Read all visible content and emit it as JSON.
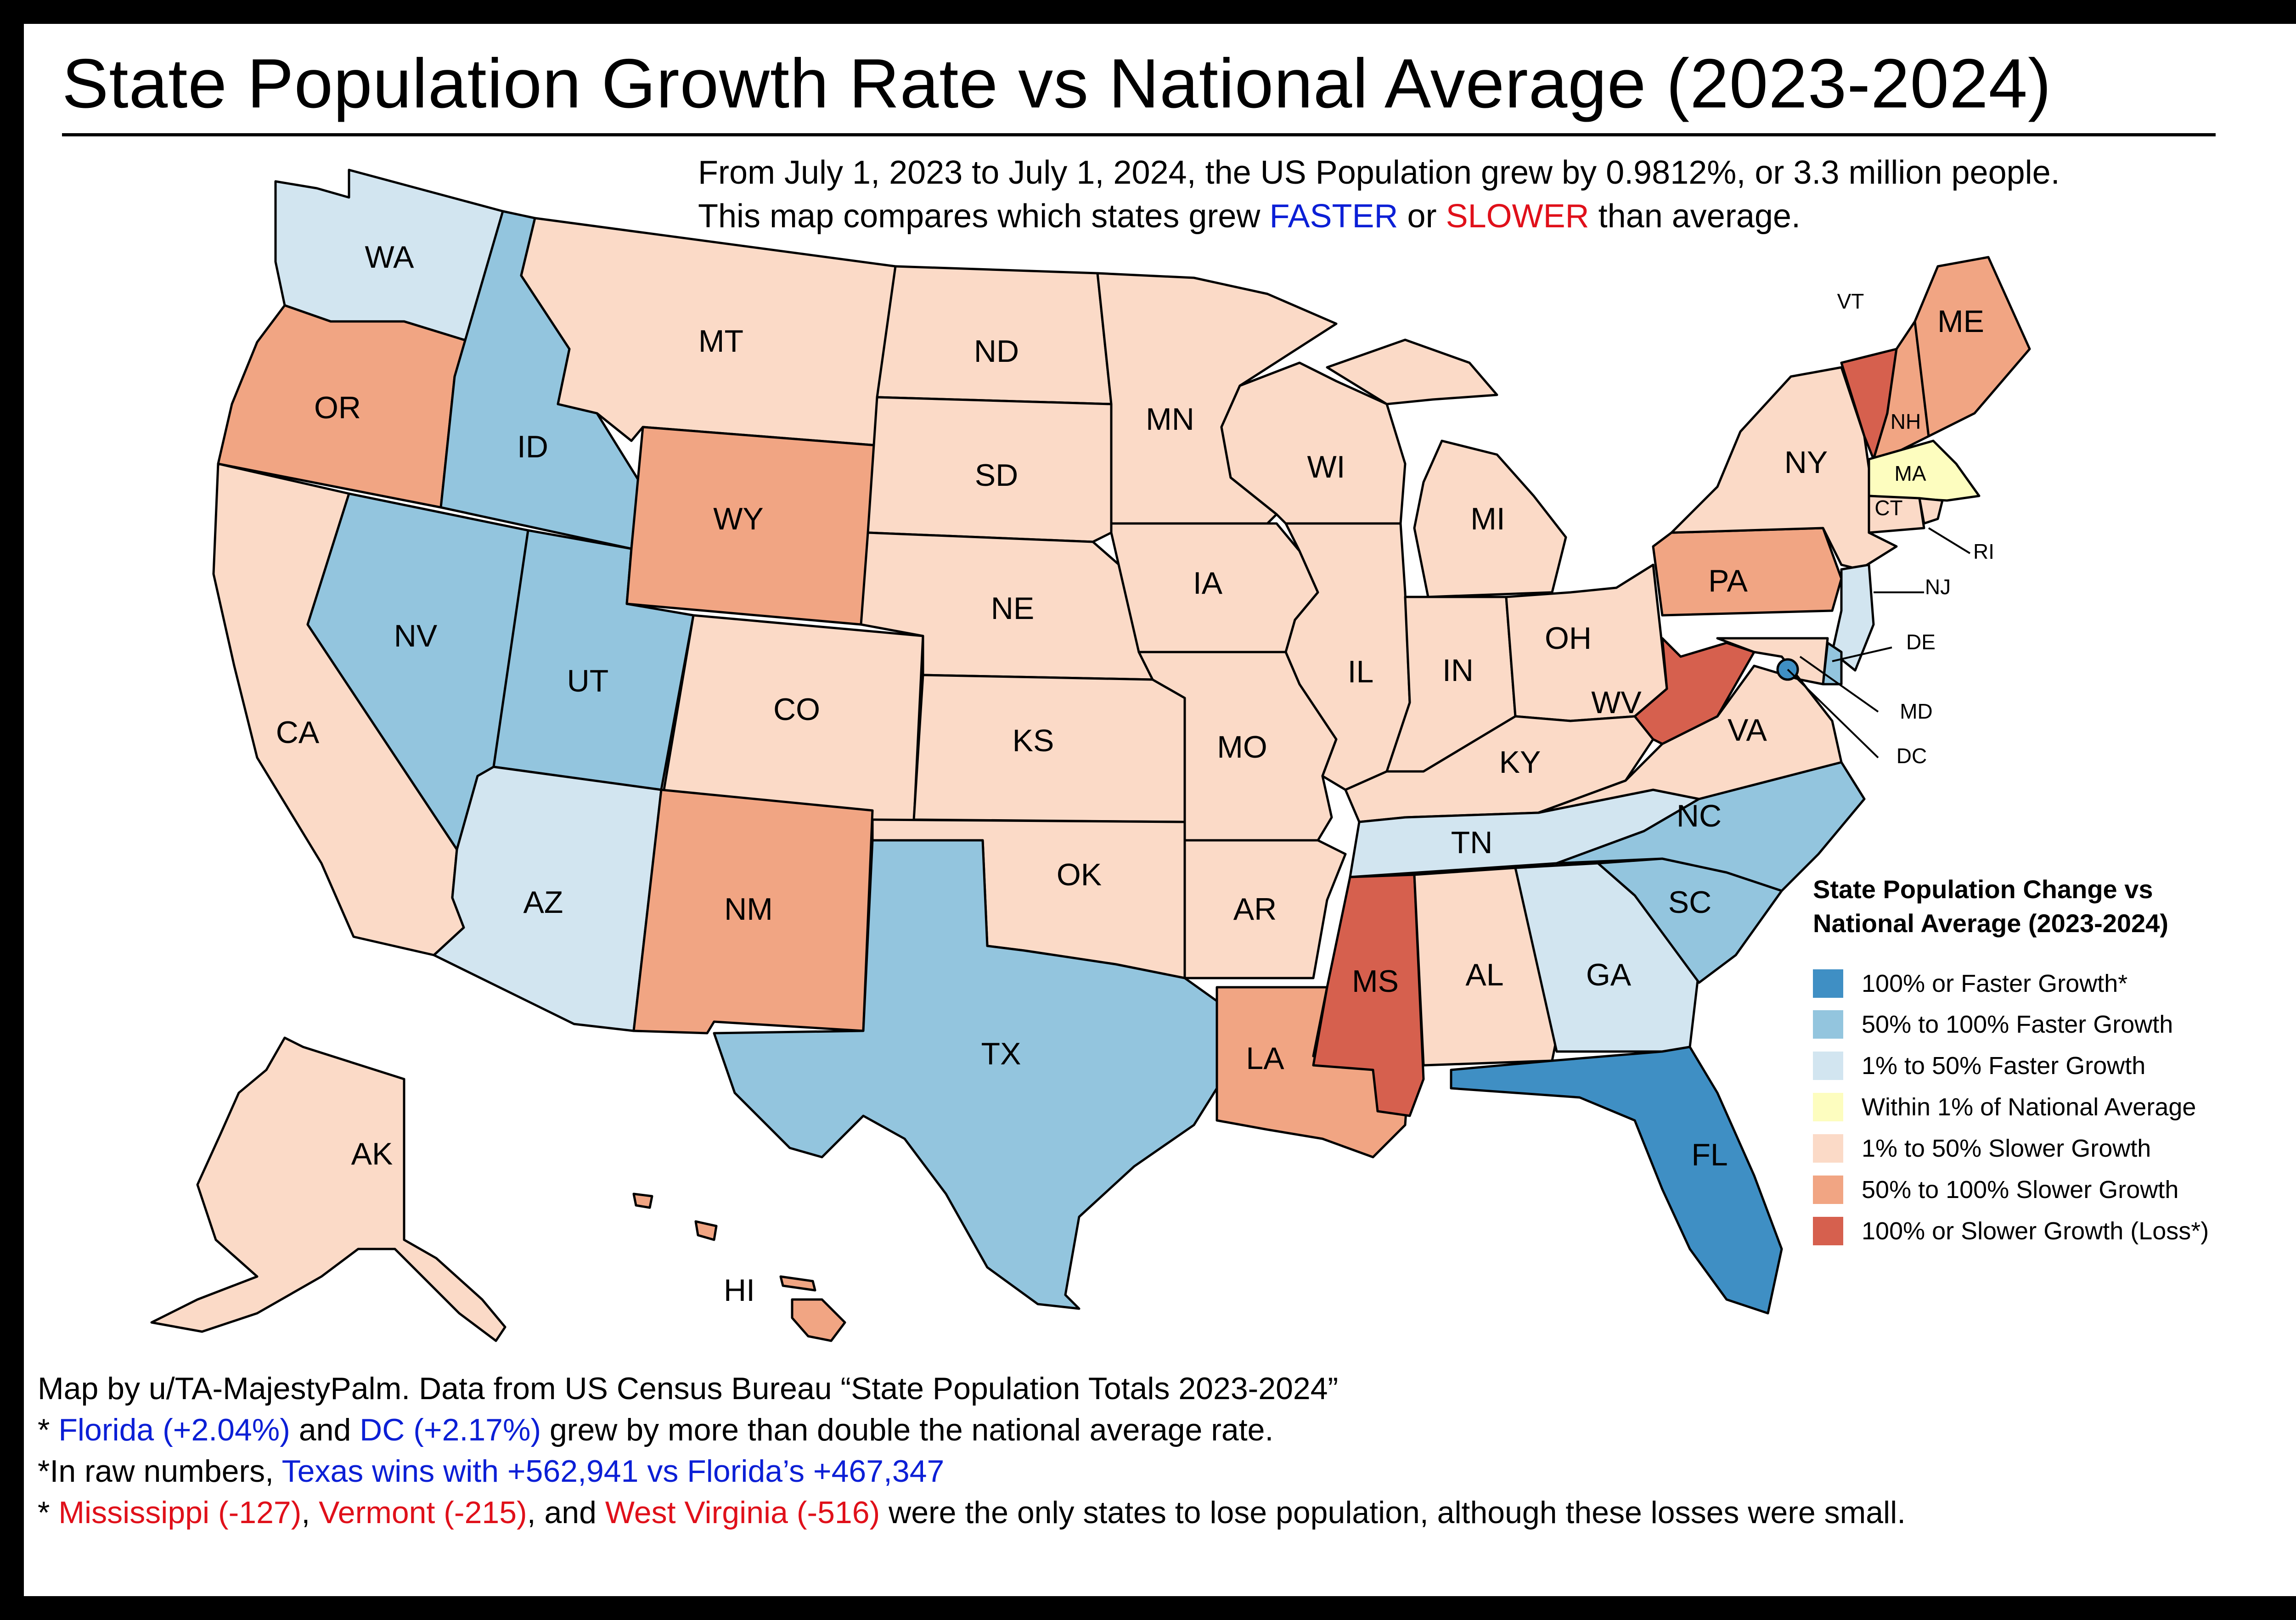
{
  "title": "State Population Growth Rate vs National Average (2023-2024)",
  "subtitle": {
    "line1": "From July 1, 2023 to July 1, 2024, the US Population grew by 0.9812%, or 3.3 million people.",
    "line2_pre": "This map compares which states grew ",
    "faster": "FASTER",
    "or": " or ",
    "slower": "SLOWER",
    "line2_post": " than average."
  },
  "legend": {
    "title_line1": "State Population Change vs",
    "title_line2": "National Average (2023-2024)",
    "items": [
      {
        "label": "100% or Faster Growth*",
        "color": "#3f8fc4"
      },
      {
        "label": "50% to 100% Faster Growth",
        "color": "#93c5de"
      },
      {
        "label": "1% to 50% Faster Growth",
        "color": "#d2e5f0"
      },
      {
        "label": "Within 1% of National Average",
        "color": "#fdfdbf"
      },
      {
        "label": "1% to 50% Slower Growth",
        "color": "#fbdac7"
      },
      {
        "label": "50% to 100% Slower Growth",
        "color": "#f1a583"
      },
      {
        "label": "100% or Slower Growth (Loss*)",
        "color": "#d6604e"
      }
    ]
  },
  "states": [
    {
      "code": "WA",
      "category": 2
    },
    {
      "code": "OR",
      "category": 5
    },
    {
      "code": "CA",
      "category": 4
    },
    {
      "code": "ID",
      "category": 1
    },
    {
      "code": "NV",
      "category": 1
    },
    {
      "code": "UT",
      "category": 1
    },
    {
      "code": "AZ",
      "category": 2
    },
    {
      "code": "MT",
      "category": 4
    },
    {
      "code": "WY",
      "category": 5
    },
    {
      "code": "CO",
      "category": 4
    },
    {
      "code": "NM",
      "category": 5
    },
    {
      "code": "ND",
      "category": 4
    },
    {
      "code": "SD",
      "category": 4
    },
    {
      "code": "NE",
      "category": 4
    },
    {
      "code": "KS",
      "category": 4
    },
    {
      "code": "OK",
      "category": 4
    },
    {
      "code": "TX",
      "category": 1
    },
    {
      "code": "MN",
      "category": 4
    },
    {
      "code": "IA",
      "category": 4
    },
    {
      "code": "MO",
      "category": 4
    },
    {
      "code": "AR",
      "category": 4
    },
    {
      "code": "LA",
      "category": 5
    },
    {
      "code": "WI",
      "category": 4
    },
    {
      "code": "IL",
      "category": 4
    },
    {
      "code": "MI",
      "category": 4
    },
    {
      "code": "IN",
      "category": 4
    },
    {
      "code": "OH",
      "category": 4
    },
    {
      "code": "KY",
      "category": 4
    },
    {
      "code": "TN",
      "category": 2
    },
    {
      "code": "MS",
      "category": 6
    },
    {
      "code": "AL",
      "category": 4
    },
    {
      "code": "GA",
      "category": 2
    },
    {
      "code": "FL",
      "category": 0
    },
    {
      "code": "SC",
      "category": 1
    },
    {
      "code": "NC",
      "category": 1
    },
    {
      "code": "VA",
      "category": 4
    },
    {
      "code": "WV",
      "category": 6
    },
    {
      "code": "PA",
      "category": 5
    },
    {
      "code": "NY",
      "category": 4
    },
    {
      "code": "VT",
      "category": 6
    },
    {
      "code": "NH",
      "category": 5
    },
    {
      "code": "ME",
      "category": 5
    },
    {
      "code": "MA",
      "category": 3
    },
    {
      "code": "CT",
      "category": 4
    },
    {
      "code": "RI",
      "category": 4
    },
    {
      "code": "NJ",
      "category": 2
    },
    {
      "code": "DE",
      "category": 1
    },
    {
      "code": "MD",
      "category": 4
    },
    {
      "code": "DC",
      "category": 0
    },
    {
      "code": "AK",
      "category": 4
    },
    {
      "code": "HI",
      "category": 5
    }
  ],
  "notes": {
    "n1": "Map by u/TA-MajestyPalm. Data from US Census Bureau “State Population Totals 2023-2024”",
    "n2_pre": "* ",
    "n2_fl": "Florida (+2.04%)",
    "n2_and": " and ",
    "n2_dc": "DC (+2.17%)",
    "n2_post": " grew by more than double the national average rate.",
    "n3_pre": "*In raw numbers, ",
    "n3_hl": "Texas wins with +562,941 vs Florida’s +467,347",
    "n4_pre": "* ",
    "n4_ms": "Mississippi (-127)",
    "n4_c1": ", ",
    "n4_vt": "Vermont (-215)",
    "n4_c2": ", and ",
    "n4_wv": "West Virginia (-516)",
    "n4_post": " were the only states to lose population, although these losses were small."
  },
  "colors": {
    "faster": "#0b1fd6",
    "slower": "#e0101a"
  }
}
